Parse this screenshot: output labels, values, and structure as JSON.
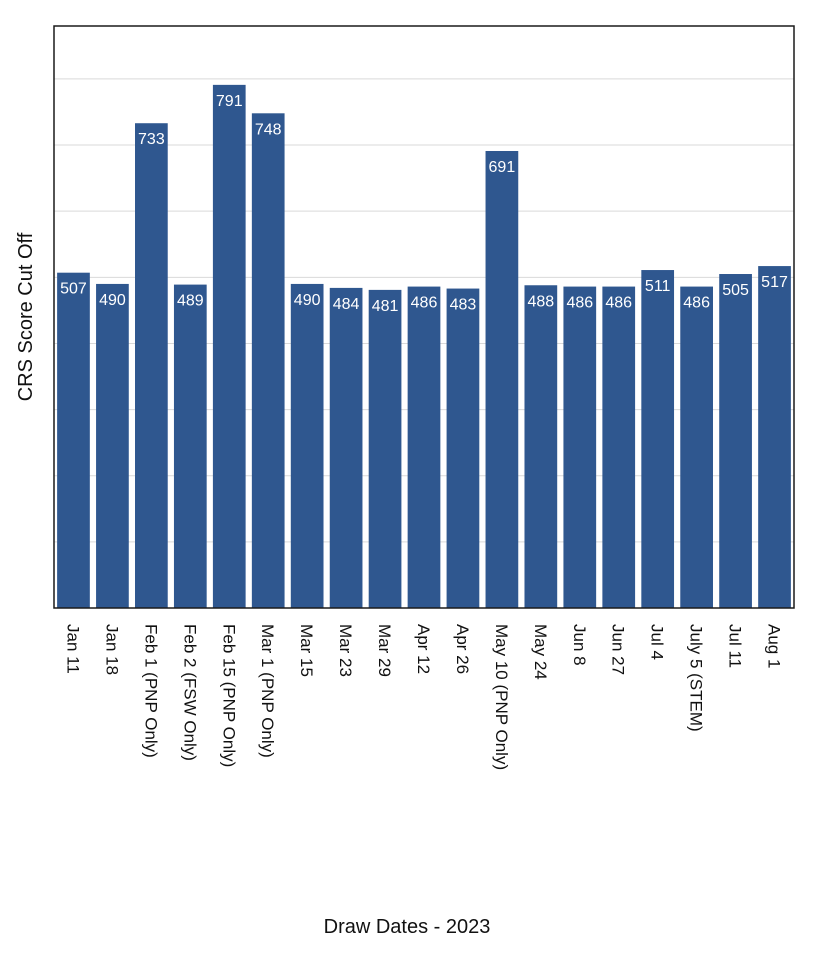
{
  "chart_data": {
    "type": "bar",
    "title": "",
    "xlabel": "Draw Dates - 2023",
    "ylabel": "CRS Score Cut Off",
    "ylim": [
      0,
      880
    ],
    "ytick_step": 100,
    "grid": true,
    "bar_color": "#2f578f",
    "value_label_color": "#ffffff",
    "categories": [
      "Jan 11",
      "Jan 18",
      "Feb 1 (PNP Only)",
      "Feb 2 (FSW Only)",
      "Feb 15 (PNP Only)",
      "Mar 1 (PNP Only)",
      "Mar 15",
      "Mar 23",
      "Mar 29",
      "Apr 12",
      "Apr 26",
      "May 10 (PNP Only)",
      "May 24",
      "Jun 8",
      "Jun 27",
      "Jul 4",
      "July 5 (STEM)",
      "Jul 11",
      "Aug 1"
    ],
    "values": [
      507,
      490,
      733,
      489,
      791,
      748,
      490,
      484,
      481,
      486,
      483,
      691,
      488,
      486,
      486,
      511,
      486,
      505,
      517
    ],
    "labels": [
      "507",
      "490",
      "733",
      "489",
      "791",
      "748",
      "490",
      "484",
      "481",
      "486",
      "483",
      "691",
      "488",
      "486",
      "486",
      "511",
      "486",
      "505",
      "517"
    ]
  }
}
